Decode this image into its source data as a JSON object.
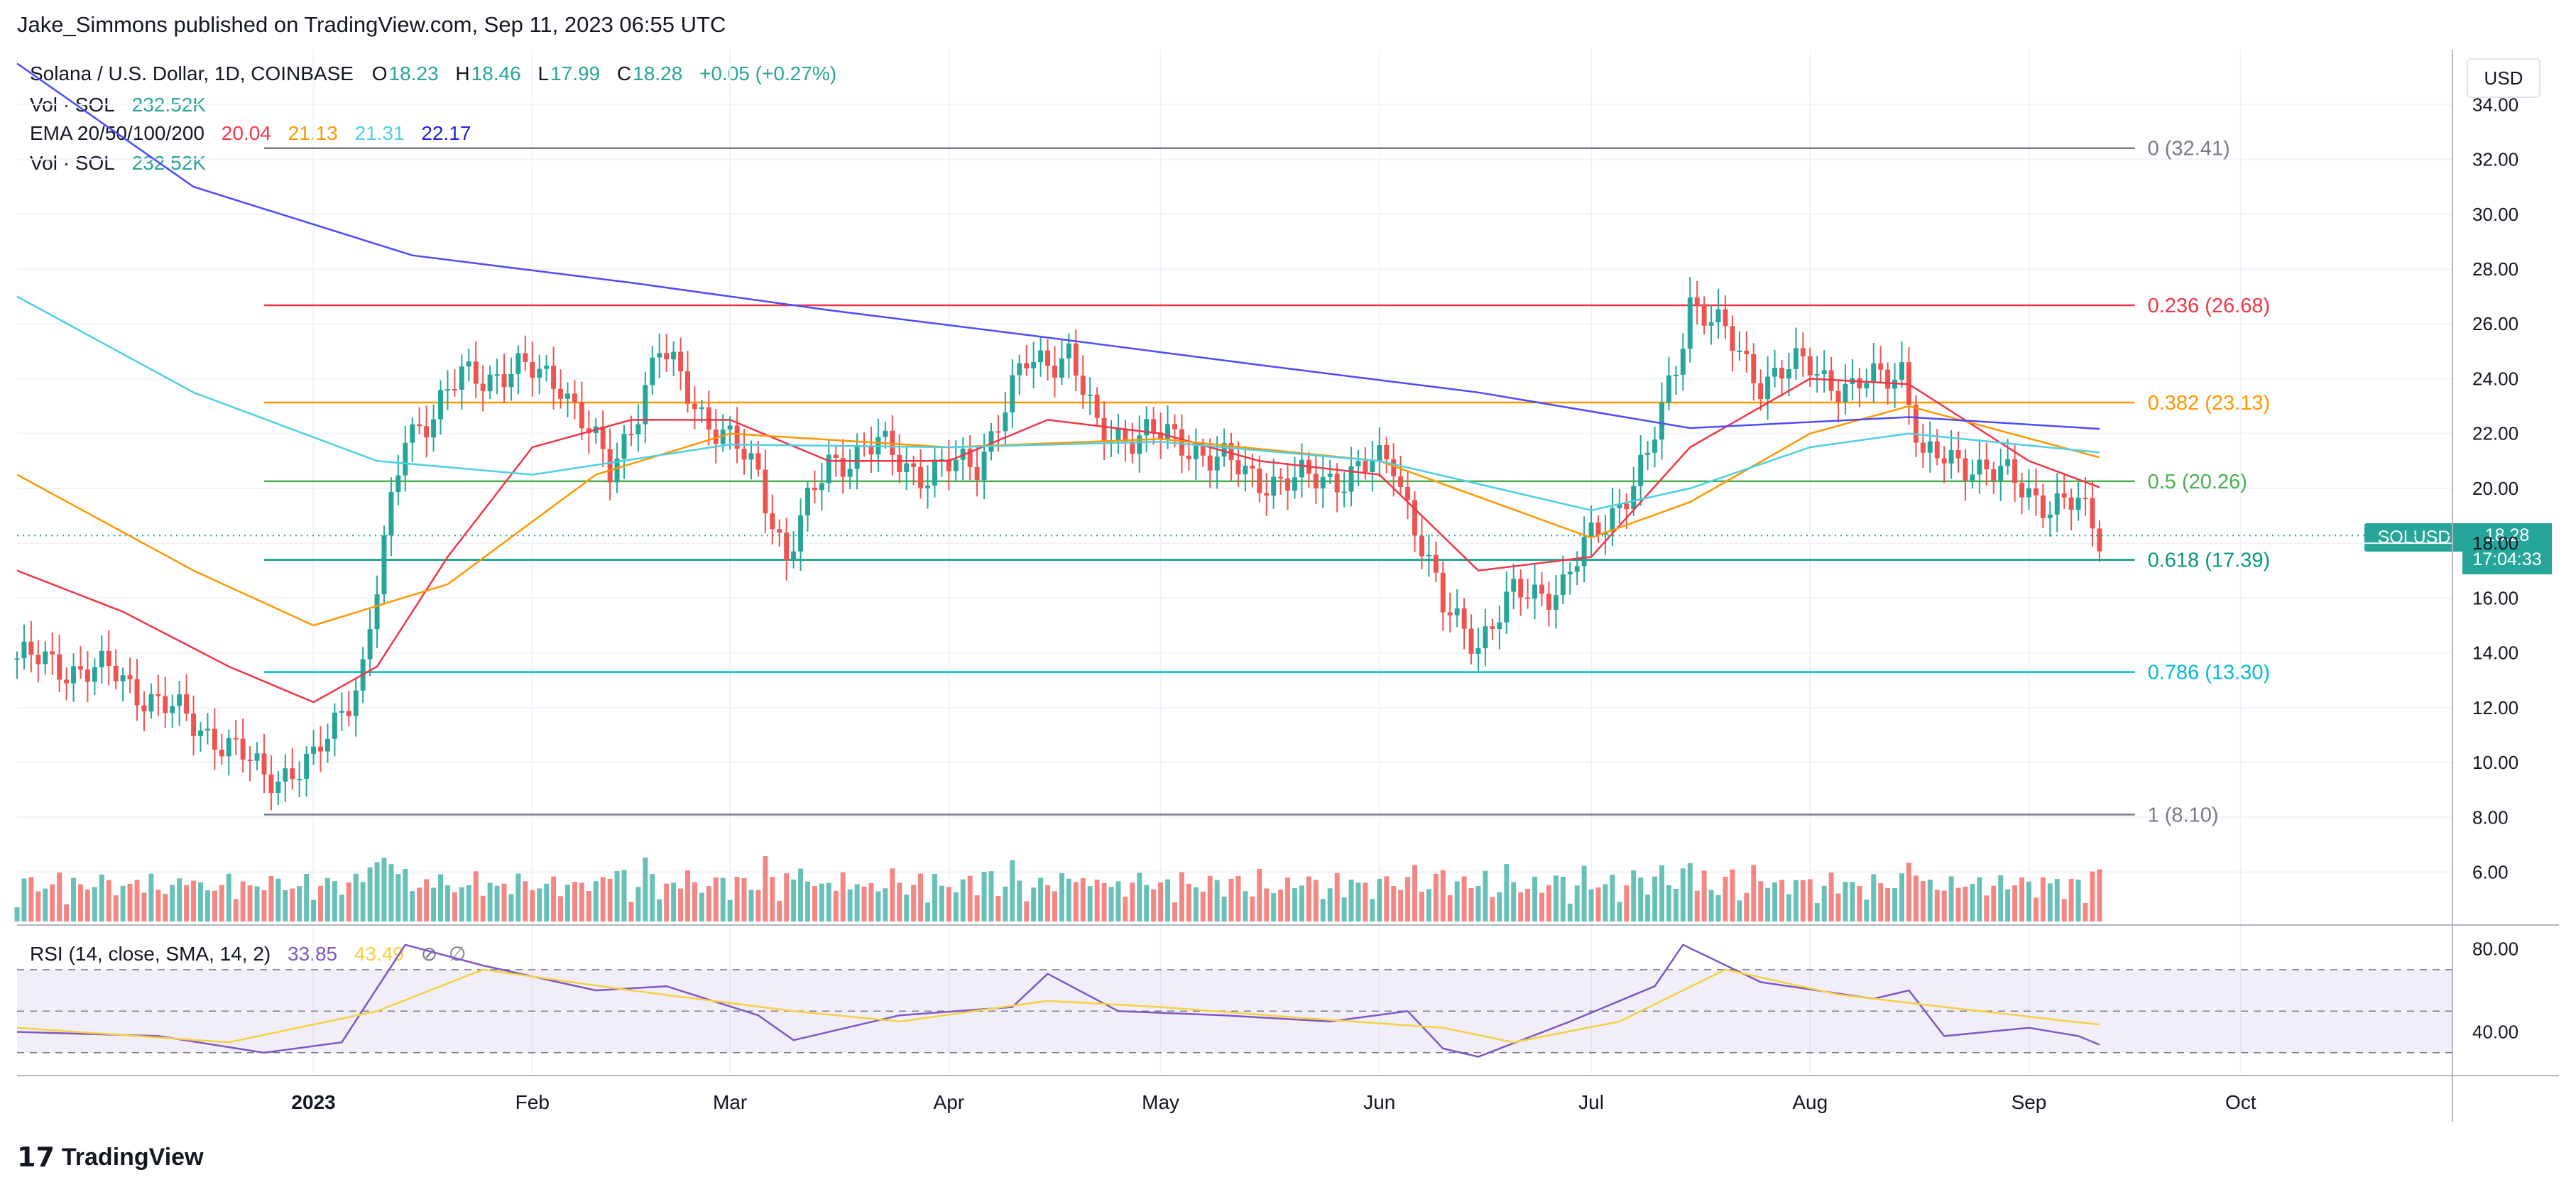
{
  "header": {
    "title": "Jake_Simmons published on TradingView.com, Sep 11, 2023 06:55 UTC"
  },
  "currency_button": "USD",
  "legend": {
    "symbol": "Solana / U.S. Dollar, 1D, COINBASE",
    "ohlc": [
      {
        "key": "O",
        "val": "18.23"
      },
      {
        "key": "H",
        "val": "18.46"
      },
      {
        "key": "L",
        "val": "17.99"
      },
      {
        "key": "C",
        "val": "18.28"
      }
    ],
    "change": "+0.05 (+0.27%)",
    "vol_label": "Vol · SOL",
    "vol_value": "232.52K",
    "ema_label": "EMA 20/50/100/200",
    "ema_values": [
      "20.04",
      "21.13",
      "21.31",
      "22.17"
    ],
    "rsi_label": "RSI (14, close, SMA, 14, 2)",
    "rsi_value": "33.85",
    "rsi_sma": "43.49"
  },
  "price_marker": {
    "symbol": "SOLUSD",
    "price": "18.28",
    "countdown": "17:04:33"
  },
  "brand": {
    "name": "TradingView",
    "logo": "17"
  },
  "colors": {
    "up": "#26a69a",
    "down": "#ef5350",
    "ema20": "#f23645",
    "ema50": "#ff9800",
    "ema100": "#4dd0e1",
    "ema200": "#4b4bff",
    "rsi": "#7e57c2",
    "rsi_sma": "#f5d142"
  },
  "chart_data": [
    {
      "type": "candlestick",
      "title": "Solana / U.S. Dollar, 1D, COINBASE",
      "ylim": [
        4.2,
        34.5
      ],
      "y_ticks": [
        "6.00",
        "8.00",
        "10.00",
        "12.00",
        "14.00",
        "16.00",
        "18.00",
        "20.00",
        "22.00",
        "24.00",
        "26.00",
        "28.00",
        "30.00",
        "32.00",
        "34.00"
      ],
      "x_ticks": [
        "2023",
        "Feb",
        "Mar",
        "Apr",
        "May",
        "Jun",
        "Jul",
        "Aug",
        "Sep",
        "Oct"
      ],
      "series": [
        {
          "name": "Solana price (daily close)",
          "color": "#131722",
          "points": [
            [
              "2022-11-20",
              13.8
            ],
            [
              "2022-11-27",
              13.5
            ],
            [
              "2022-12-04",
              13.2
            ],
            [
              "2022-12-11",
              12.0
            ],
            [
              "2022-12-18",
              11.0
            ],
            [
              "2022-12-25",
              9.5
            ],
            [
              "2023-01-01",
              9.9
            ],
            [
              "2023-01-08",
              13.5
            ],
            [
              "2023-01-14",
              22.0
            ],
            [
              "2023-01-18",
              22.8
            ],
            [
              "2023-01-22",
              24.0
            ],
            [
              "2023-01-29",
              24.3
            ],
            [
              "2023-02-05",
              24.0
            ],
            [
              "2023-02-12",
              20.5
            ],
            [
              "2023-02-19",
              25.0
            ],
            [
              "2023-02-26",
              22.5
            ],
            [
              "2023-03-05",
              20.5
            ],
            [
              "2023-03-09",
              17.5
            ],
            [
              "2023-03-15",
              21.0
            ],
            [
              "2023-03-22",
              21.5
            ],
            [
              "2023-03-29",
              20.5
            ],
            [
              "2023-04-05",
              21.0
            ],
            [
              "2023-04-12",
              24.5
            ],
            [
              "2023-04-18",
              25.0
            ],
            [
              "2023-04-22",
              22.0
            ],
            [
              "2023-04-29",
              22.0
            ],
            [
              "2023-05-06",
              21.5
            ],
            [
              "2023-05-13",
              20.5
            ],
            [
              "2023-05-20",
              20.2
            ],
            [
              "2023-05-27",
              20.5
            ],
            [
              "2023-06-03",
              21.0
            ],
            [
              "2023-06-07",
              18.0
            ],
            [
              "2023-06-10",
              15.5
            ],
            [
              "2023-06-15",
              14.5
            ],
            [
              "2023-06-20",
              16.0
            ],
            [
              "2023-06-27",
              16.5
            ],
            [
              "2023-07-02",
              18.5
            ],
            [
              "2023-07-09",
              21.0
            ],
            [
              "2023-07-13",
              24.5
            ],
            [
              "2023-07-15",
              27.0
            ],
            [
              "2023-07-20",
              25.5
            ],
            [
              "2023-07-25",
              24.0
            ],
            [
              "2023-08-01",
              24.5
            ],
            [
              "2023-08-07",
              23.5
            ],
            [
              "2023-08-14",
              24.5
            ],
            [
              "2023-08-17",
              21.0
            ],
            [
              "2023-08-24",
              21.0
            ],
            [
              "2023-08-31",
              20.0
            ],
            [
              "2023-09-04",
              19.5
            ],
            [
              "2023-09-08",
              19.3
            ],
            [
              "2023-09-11",
              18.28
            ]
          ]
        },
        {
          "name": "EMA 20",
          "color": "#f23645",
          "points": [
            [
              "2022-11-20",
              17.0
            ],
            [
              "2022-12-05",
              15.5
            ],
            [
              "2022-12-20",
              13.5
            ],
            [
              "2023-01-01",
              12.2
            ],
            [
              "2023-01-10",
              13.5
            ],
            [
              "2023-01-20",
              17.5
            ],
            [
              "2023-02-01",
              21.5
            ],
            [
              "2023-02-15",
              22.5
            ],
            [
              "2023-03-01",
              22.5
            ],
            [
              "2023-03-15",
              21.0
            ],
            [
              "2023-04-01",
              21.0
            ],
            [
              "2023-04-15",
              22.5
            ],
            [
              "2023-05-01",
              22.0
            ],
            [
              "2023-05-15",
              21.0
            ],
            [
              "2023-06-01",
              20.5
            ],
            [
              "2023-06-15",
              17.0
            ],
            [
              "2023-07-01",
              17.5
            ],
            [
              "2023-07-15",
              21.5
            ],
            [
              "2023-08-01",
              24.0
            ],
            [
              "2023-08-15",
              23.8
            ],
            [
              "2023-09-01",
              21.0
            ],
            [
              "2023-09-11",
              20.04
            ]
          ]
        },
        {
          "name": "EMA 50",
          "color": "#ff9800",
          "points": [
            [
              "2022-11-20",
              20.5
            ],
            [
              "2022-12-15",
              17.0
            ],
            [
              "2023-01-01",
              15.0
            ],
            [
              "2023-01-20",
              16.5
            ],
            [
              "2023-02-10",
              20.5
            ],
            [
              "2023-03-01",
              22.0
            ],
            [
              "2023-04-01",
              21.5
            ],
            [
              "2023-05-01",
              21.8
            ],
            [
              "2023-06-01",
              21.0
            ],
            [
              "2023-07-01",
              18.2
            ],
            [
              "2023-07-15",
              19.5
            ],
            [
              "2023-08-01",
              22.0
            ],
            [
              "2023-08-15",
              23.0
            ],
            [
              "2023-09-11",
              21.13
            ]
          ]
        },
        {
          "name": "EMA 100",
          "color": "#4dd0e1",
          "points": [
            [
              "2022-11-20",
              27.0
            ],
            [
              "2022-12-15",
              23.5
            ],
            [
              "2023-01-10",
              21.0
            ],
            [
              "2023-02-01",
              20.5
            ],
            [
              "2023-03-01",
              21.6
            ],
            [
              "2023-04-01",
              21.5
            ],
            [
              "2023-05-01",
              21.7
            ],
            [
              "2023-06-01",
              21.0
            ],
            [
              "2023-07-01",
              19.2
            ],
            [
              "2023-07-15",
              20.0
            ],
            [
              "2023-08-01",
              21.5
            ],
            [
              "2023-08-15",
              22.0
            ],
            [
              "2023-09-11",
              21.31
            ]
          ]
        },
        {
          "name": "EMA 200",
          "color": "#4b4bff",
          "points": [
            [
              "2022-11-20",
              35.5
            ],
            [
              "2022-12-15",
              31.0
            ],
            [
              "2023-01-15",
              28.5
            ],
            [
              "2023-02-15",
              27.5
            ],
            [
              "2023-03-15",
              26.5
            ],
            [
              "2023-04-15",
              25.5
            ],
            [
              "2023-05-15",
              24.5
            ],
            [
              "2023-06-15",
              23.5
            ],
            [
              "2023-07-15",
              22.2
            ],
            [
              "2023-08-15",
              22.6
            ],
            [
              "2023-09-11",
              22.17
            ]
          ]
        }
      ],
      "annotations": [
        {
          "label": "0 (32.41)",
          "value": 32.41,
          "color": "#787b86"
        },
        {
          "label": "0.236 (26.68)",
          "value": 26.68,
          "color": "#f23645"
        },
        {
          "label": "0.382 (23.13)",
          "value": 23.13,
          "color": "#ff9800"
        },
        {
          "label": "0.5 (20.26)",
          "value": 20.26,
          "color": "#4caf50"
        },
        {
          "label": "0.618 (17.39)",
          "value": 17.39,
          "color": "#089981"
        },
        {
          "label": "0.786 (13.30)",
          "value": 13.3,
          "color": "#00bcd4"
        },
        {
          "label": "1 (8.10)",
          "value": 8.1,
          "color": "#787b86"
        }
      ]
    },
    {
      "type": "line",
      "title": "RSI (14, close, SMA, 14, 2)",
      "ylim": [
        20,
        85
      ],
      "y_ticks": [
        "40.00",
        "80.00"
      ],
      "bands": [
        70,
        50,
        30
      ],
      "series": [
        {
          "name": "RSI",
          "color": "#7e57c2",
          "points": [
            [
              "2022-11-20",
              40
            ],
            [
              "2022-12-10",
              38
            ],
            [
              "2022-12-25",
              30
            ],
            [
              "2023-01-05",
              35
            ],
            [
              "2023-01-14",
              82
            ],
            [
              "2023-01-25",
              72
            ],
            [
              "2023-02-10",
              60
            ],
            [
              "2023-02-20",
              62
            ],
            [
              "2023-03-05",
              48
            ],
            [
              "2023-03-10",
              36
            ],
            [
              "2023-03-25",
              48
            ],
            [
              "2023-04-10",
              52
            ],
            [
              "2023-04-15",
              68
            ],
            [
              "2023-04-25",
              50
            ],
            [
              "2023-05-10",
              48
            ],
            [
              "2023-05-25",
              45
            ],
            [
              "2023-06-05",
              50
            ],
            [
              "2023-06-10",
              32
            ],
            [
              "2023-06-15",
              28
            ],
            [
              "2023-06-28",
              45
            ],
            [
              "2023-07-10",
              62
            ],
            [
              "2023-07-14",
              82
            ],
            [
              "2023-07-25",
              64
            ],
            [
              "2023-08-10",
              56
            ],
            [
              "2023-08-15",
              60
            ],
            [
              "2023-08-20",
              38
            ],
            [
              "2023-09-01",
              42
            ],
            [
              "2023-09-08",
              38
            ],
            [
              "2023-09-11",
              33.85
            ]
          ]
        },
        {
          "name": "RSI SMA",
          "color": "#f5d142",
          "points": [
            [
              "2022-11-20",
              42
            ],
            [
              "2022-12-20",
              35
            ],
            [
              "2023-01-10",
              50
            ],
            [
              "2023-01-25",
              70
            ],
            [
              "2023-02-15",
              60
            ],
            [
              "2023-03-10",
              50
            ],
            [
              "2023-03-25",
              45
            ],
            [
              "2023-04-15",
              55
            ],
            [
              "2023-05-01",
              52
            ],
            [
              "2023-05-20",
              47
            ],
            [
              "2023-06-10",
              42
            ],
            [
              "2023-06-20",
              35
            ],
            [
              "2023-07-05",
              45
            ],
            [
              "2023-07-20",
              70
            ],
            [
              "2023-08-05",
              58
            ],
            [
              "2023-08-20",
              52
            ],
            [
              "2023-09-11",
              43.49
            ]
          ]
        }
      ]
    }
  ]
}
